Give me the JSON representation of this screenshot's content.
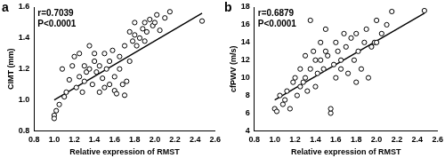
{
  "chart_data": [
    {
      "type": "scatter",
      "title": "a",
      "x_label": "Relative expression of RMST",
      "y_label": "CIMT (mm)",
      "annotations": [
        "r=0.7039",
        "P<0.0001"
      ],
      "color": "#000000",
      "marker": "circle",
      "grid": false,
      "xlim": [
        0.8,
        2.6
      ],
      "xticks": [
        0.8,
        {
          "value": 1.0,
          "label": "1.0"
        },
        1.2,
        1.4,
        1.6,
        1.8,
        {
          "value": 2.0,
          "label": "2.0"
        },
        2.2,
        2.4,
        2.6
      ],
      "ylim": [
        0.8,
        1.6
      ],
      "yticks": [
        0.8,
        {
          "value": 1.0,
          "label": "1.0"
        },
        1.2,
        1.4,
        1.6
      ],
      "x": [
        1.0,
        1.0,
        1.02,
        1.05,
        1.08,
        1.1,
        1.12,
        1.15,
        1.18,
        1.2,
        1.22,
        1.25,
        1.25,
        1.28,
        1.3,
        1.3,
        1.32,
        1.35,
        1.35,
        1.38,
        1.4,
        1.4,
        1.42,
        1.45,
        1.45,
        1.48,
        1.5,
        1.5,
        1.52,
        1.55,
        1.55,
        1.58,
        1.6,
        1.6,
        1.62,
        1.65,
        1.65,
        1.68,
        1.7,
        1.7,
        1.72,
        1.75,
        1.75,
        1.78,
        1.8,
        1.8,
        1.82,
        1.85,
        1.88,
        1.9,
        1.9,
        1.92,
        1.95,
        1.98,
        2.0,
        2.02,
        2.05,
        2.1,
        2.15,
        2.47
      ],
      "values": [
        0.9,
        0.88,
        0.93,
        0.97,
        1.2,
        1.02,
        1.05,
        1.13,
        1.22,
        1.28,
        1.08,
        1.3,
        1.15,
        1.05,
        1.22,
        1.12,
        1.18,
        1.35,
        1.2,
        1.1,
        1.25,
        1.3,
        1.18,
        1.05,
        1.22,
        1.14,
        1.08,
        1.3,
        1.2,
        1.1,
        1.25,
        1.32,
        1.15,
        1.06,
        1.04,
        1.2,
        1.28,
        1.1,
        1.35,
        1.03,
        1.12,
        1.25,
        1.44,
        1.38,
        1.42,
        1.5,
        1.35,
        1.4,
        1.46,
        1.5,
        1.38,
        1.44,
        1.52,
        1.48,
        1.5,
        1.55,
        1.45,
        1.53,
        1.57,
        1.51
      ],
      "trend_line": {
        "x": [
          1.0,
          2.47
        ],
        "values": [
          1.0,
          1.56
        ]
      }
    },
    {
      "type": "scatter",
      "title": "b",
      "x_label": "Relative expression of RMST",
      "y_label": "cfPWV (m/s)",
      "annotations": [
        "r=0.6879",
        "P<0.0001"
      ],
      "color": "#000000",
      "marker": "circle",
      "grid": false,
      "xlim": [
        0.8,
        2.6
      ],
      "xticks": [
        0.8,
        {
          "value": 1.0,
          "label": "1.0"
        },
        1.2,
        1.4,
        1.6,
        1.8,
        {
          "value": 2.0,
          "label": "2.0"
        },
        2.2,
        2.4,
        2.6
      ],
      "ylim": [
        4,
        18
      ],
      "yticks": [
        4,
        6,
        8,
        10,
        12,
        14,
        16,
        18
      ],
      "x": [
        1.0,
        1.02,
        1.05,
        1.08,
        1.1,
        1.12,
        1.15,
        1.18,
        1.2,
        1.22,
        1.25,
        1.25,
        1.28,
        1.3,
        1.3,
        1.32,
        1.35,
        1.38,
        1.4,
        1.4,
        1.42,
        1.45,
        1.45,
        1.48,
        1.5,
        1.5,
        1.52,
        1.55,
        1.55,
        1.58,
        1.6,
        1.6,
        1.62,
        1.65,
        1.65,
        1.68,
        1.7,
        1.72,
        1.75,
        1.78,
        1.8,
        1.8,
        1.82,
        1.85,
        1.88,
        1.9,
        1.92,
        1.95,
        1.98,
        2.0,
        2.0,
        2.05,
        2.1,
        2.15,
        1.35,
        2.47
      ],
      "values": [
        6.5,
        6.2,
        8.0,
        7.0,
        7.5,
        8.5,
        6.5,
        9.5,
        10,
        8.0,
        9.0,
        11,
        9.5,
        10,
        12.5,
        8.5,
        11,
        13,
        12,
        9.0,
        10.5,
        12,
        14,
        11,
        13,
        15.5,
        12.5,
        6.0,
        6.5,
        11.5,
        10,
        14,
        13,
        12,
        11,
        15,
        13.5,
        10.5,
        14.5,
        12,
        15,
        9.5,
        13,
        11,
        14,
        15.5,
        10,
        13.5,
        14,
        16.5,
        14,
        15,
        16,
        17.5,
        16.5,
        17.6
      ],
      "trend_line": {
        "x": [
          1.0,
          2.47
        ],
        "values": [
          7.5,
          17.3
        ]
      }
    }
  ]
}
